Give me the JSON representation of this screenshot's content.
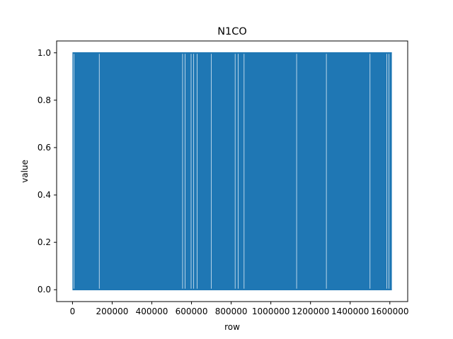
{
  "chart_data": {
    "type": "line",
    "title": "N1CO",
    "xlabel": "row",
    "ylabel": "value",
    "xlim": [
      -80000,
      1690000
    ],
    "ylim": [
      -0.05,
      1.05
    ],
    "x_ticks": [
      0,
      200000,
      400000,
      600000,
      800000,
      1000000,
      1200000,
      1400000,
      1600000
    ],
    "x_tick_labels": [
      "0",
      "200000",
      "400000",
      "600000",
      "800000",
      "1000000",
      "1200000",
      "1400000",
      "1600000"
    ],
    "y_ticks": [
      0.0,
      0.2,
      0.4,
      0.6,
      0.8,
      1.0
    ],
    "y_tick_labels": [
      "0.0",
      "0.2",
      "0.4",
      "0.6",
      "0.8",
      "1.0"
    ],
    "grid": false,
    "series": [
      {
        "color": "#1f77b4",
        "x_range": [
          0,
          1610000
        ],
        "value_levels": [
          0,
          1
        ],
        "description_of_pattern": "binary signal rapidly alternating between 0 and 1 across all rows",
        "gap_rows": [
          7000,
          135000,
          555000,
          568000,
          598000,
          611000,
          628000,
          700000,
          820000,
          835000,
          865000,
          1130000,
          1280000,
          1500000,
          1585000,
          1595000
        ]
      }
    ]
  }
}
